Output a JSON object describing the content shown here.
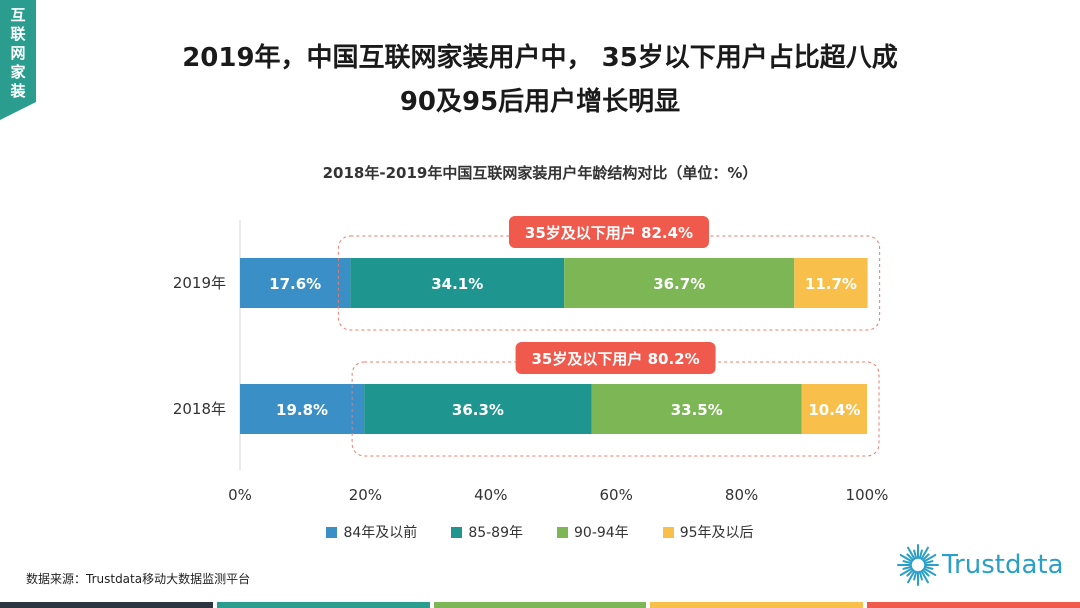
{
  "corner_tag": "互联网家装",
  "headline": {
    "line1": "2019年，中国互联网家装用户中， 35岁以下用户占比超八成",
    "line2": "90及95后用户增长明显"
  },
  "source": "数据来源：Trustdata移动大数据监测平台",
  "logo_text": "Trustdata",
  "colors": {
    "teal": "#2a9d8f",
    "blue": "#3a8fc6",
    "green": "#7cb655",
    "yellow": "#f8c04a",
    "red": "#ef5a4c",
    "dark": "#2d3640"
  },
  "chart_data": {
    "type": "bar",
    "orientation": "horizontal",
    "stacked": true,
    "title": "2018年-2019年中国互联网家装用户年龄结构对比（单位：%）",
    "categories": [
      "2019年",
      "2018年"
    ],
    "series": [
      {
        "name": "84年及以前",
        "values": [
          17.6,
          19.8
        ],
        "labels": [
          "17.6%",
          "19.8%"
        ],
        "color": "#3a8fc6"
      },
      {
        "name": "85-89年",
        "values": [
          34.1,
          36.3
        ],
        "labels": [
          "34.1%",
          "36.3%"
        ],
        "color": "#1f958f"
      },
      {
        "name": "90-94年",
        "values": [
          36.7,
          33.5
        ],
        "labels": [
          "36.7%",
          "33.5%"
        ],
        "color": "#7cb655"
      },
      {
        "name": "95年及以后",
        "values": [
          11.7,
          10.4
        ],
        "labels": [
          "11.7%",
          "10.4%"
        ],
        "color": "#f8c04a"
      }
    ],
    "xlim": [
      0,
      100
    ],
    "xticks": [
      "0%",
      "20%",
      "40%",
      "60%",
      "80%",
      "100%"
    ],
    "annotations": [
      {
        "category": "2019年",
        "text": "35岁及以下用户 82.4%"
      },
      {
        "category": "2018年",
        "text": "35岁及以下用户 80.2%"
      }
    ],
    "legend_position": "bottom"
  }
}
